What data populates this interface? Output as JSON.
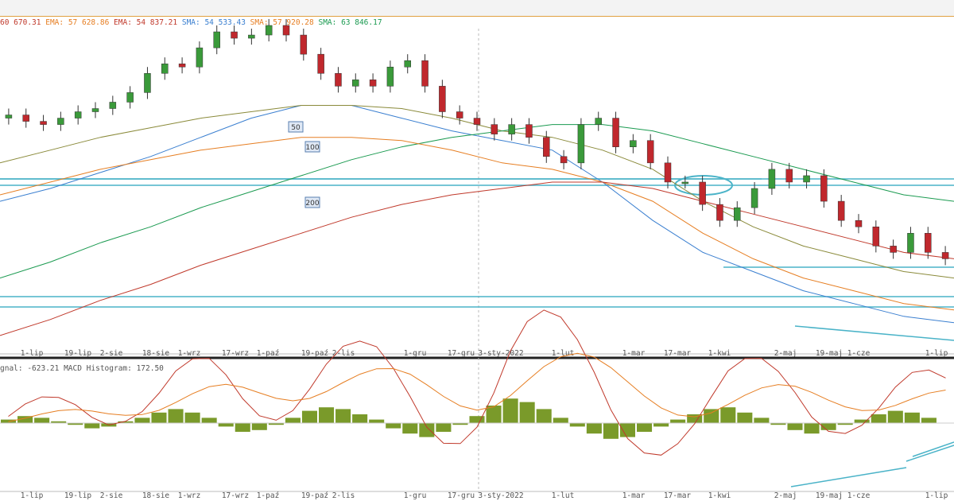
{
  "legend": {
    "items": [
      {
        "text": "60 670.31",
        "color": "#c0392b"
      },
      {
        "text": "EMA: 57 628.86",
        "color": "#e67e22"
      },
      {
        "text": "EMA: 54 837.21",
        "color": "#c0392b"
      },
      {
        "text": "SMA: 54 533.43",
        "color": "#3a7fd0"
      },
      {
        "text": "SMA: 57 920.28",
        "color": "#e67e22"
      },
      {
        "text": "SMA: 63 846.17",
        "color": "#1a9a50"
      }
    ]
  },
  "macd_legend": {
    "prefix": "gnal: -623.21 MACD Histogram: 172.50"
  },
  "ma_tags": [
    "50",
    "100",
    "200"
  ],
  "colors": {
    "up": "#3a9a3a",
    "down": "#c0282d",
    "trendline": "#4ab3c8",
    "sma50": "#3a7fd0",
    "sma100": "#8a8a3a",
    "sma200": "#1a9a50",
    "ema_a": "#e67e22",
    "ema_b": "#c0392b",
    "hist": "#7a9a2a",
    "macd": "#c0392b",
    "signal": "#e67e22",
    "grid": "#e6e6e6"
  },
  "chart_data": [
    {
      "type": "candlestick",
      "x_axis": {
        "labels": [
          "1-lip",
          "19-lip",
          "2-sie",
          "18-sie",
          "1-wrz",
          "17-wrz",
          "1-paź",
          "19-paź",
          "2-lis",
          "1-gru",
          "17-gru",
          "3-sty-2022",
          "1-lut",
          "1-mar",
          "17-mar",
          "1-kwi",
          "2-maj",
          "19-maj",
          "1-cze",
          "1-lip"
        ]
      },
      "series": [
        {
          "name": "SMA",
          "label": "50",
          "values": [
            46,
            50,
            55,
            60,
            66,
            72,
            76,
            76,
            72,
            68,
            65,
            62,
            52,
            40,
            30,
            24,
            18,
            14,
            10,
            8
          ]
        },
        {
          "name": "SMA",
          "label": "100",
          "values": [
            58,
            62,
            66,
            69,
            72,
            74,
            76,
            76,
            75,
            72,
            68,
            66,
            62,
            56,
            46,
            38,
            32,
            28,
            24,
            22
          ]
        },
        {
          "name": "SMA",
          "label": "200",
          "values": [
            22,
            27,
            33,
            38,
            44,
            49,
            54,
            59,
            63,
            66,
            68,
            70,
            70,
            68,
            64,
            60,
            56,
            52,
            48,
            46
          ]
        }
      ],
      "candles_close": [
        73,
        71,
        70,
        72,
        74,
        75,
        77,
        80,
        86,
        89,
        88,
        94,
        99,
        97,
        98,
        101,
        98,
        92,
        86,
        82,
        84,
        82,
        88,
        90,
        82,
        74,
        72,
        70,
        67,
        70,
        66,
        60,
        58,
        70,
        72,
        63,
        65,
        58,
        52,
        52,
        45,
        40,
        44,
        50,
        56,
        52,
        54,
        46,
        40,
        38,
        32,
        30,
        36,
        30,
        28
      ]
    },
    {
      "type": "bar",
      "name": "MACD Histogram",
      "values": [
        2,
        4,
        3,
        1,
        -1,
        -3,
        -2,
        1,
        3,
        6,
        8,
        6,
        3,
        -2,
        -5,
        -4,
        -1,
        3,
        7,
        9,
        8,
        5,
        2,
        -3,
        -6,
        -8,
        -5,
        -1,
        4,
        10,
        14,
        12,
        8,
        3,
        -2,
        -6,
        -9,
        -8,
        -5,
        -2,
        2,
        5,
        8,
        9,
        6,
        3,
        -1,
        -4,
        -6,
        -4,
        -1,
        2,
        5,
        7,
        6,
        3,
        0
      ]
    }
  ]
}
